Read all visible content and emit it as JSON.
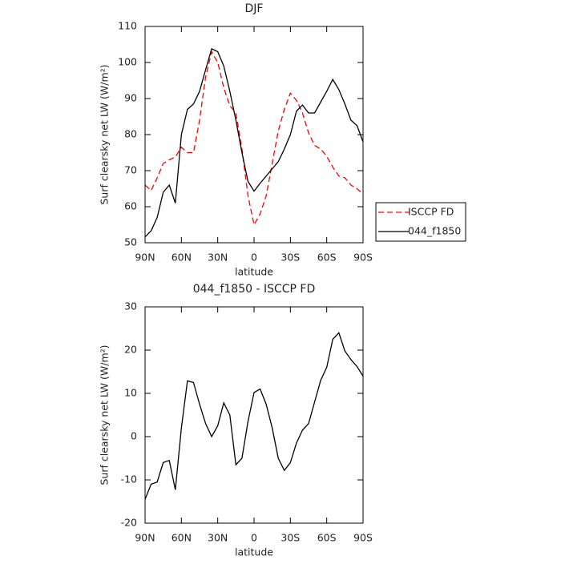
{
  "chart_data": [
    {
      "type": "line",
      "title": "DJF",
      "x_label": "latitude",
      "y_label": "Surf clearsky net LW (W/m²)",
      "x": [
        90,
        85,
        80,
        75,
        70,
        65,
        60,
        55,
        50,
        45,
        40,
        35,
        30,
        25,
        20,
        15,
        10,
        5,
        0,
        -5,
        -10,
        -15,
        -20,
        -25,
        -30,
        -35,
        -40,
        -45,
        -50,
        -55,
        -60,
        -65,
        -70,
        -75,
        -80,
        -85,
        -90
      ],
      "series": [
        {
          "name": "ISCCP FD",
          "color": "#ff0000",
          "line_style": "dashed",
          "values": [
            66,
            64.5,
            68,
            72,
            73,
            73.8,
            76.5,
            75,
            75,
            84,
            96,
            103,
            100,
            93,
            88,
            86,
            76,
            63,
            55,
            58,
            63,
            72,
            81,
            87,
            91.5,
            89.5,
            86,
            80.5,
            77,
            76,
            74,
            71,
            68.5,
            68,
            66,
            65,
            63.5
          ]
        },
        {
          "name": "044_f1850",
          "color": "#000000",
          "line_style": "solid",
          "values": [
            51.6,
            53.3,
            57,
            64,
            66,
            61,
            80,
            87,
            88.5,
            92,
            98,
            103.8,
            103,
            99,
            92,
            84,
            75,
            67,
            64.3,
            66.5,
            68.5,
            70.5,
            72.5,
            76,
            80,
            86.5,
            88.2,
            86,
            86,
            89,
            92,
            95.3,
            92.5,
            88.5,
            84,
            82.5,
            78
          ]
        }
      ],
      "xlim": [
        90,
        -90
      ],
      "xticks": [
        {
          "value": 90,
          "label": "90N"
        },
        {
          "value": 60,
          "label": "60N"
        },
        {
          "value": 30,
          "label": "30N"
        },
        0,
        {
          "value": -30,
          "label": "30S"
        },
        {
          "value": -60,
          "label": "60S"
        },
        {
          "value": -90,
          "label": "90S"
        }
      ],
      "ylim": [
        50,
        110
      ],
      "yticks": [
        50,
        60,
        70,
        80,
        90,
        100,
        110
      ],
      "legend": "right"
    },
    {
      "type": "line",
      "title": "044_f1850 - ISCCP FD",
      "x_label": "latitude",
      "y_label": "Surf clearsky net LW (W/m²)",
      "x": [
        90,
        85,
        80,
        75,
        70,
        65,
        60,
        55,
        50,
        45,
        40,
        35,
        30,
        25,
        20,
        15,
        10,
        5,
        0,
        -5,
        -10,
        -15,
        -20,
        -25,
        -30,
        -35,
        -40,
        -45,
        -50,
        -55,
        -60,
        -65,
        -70,
        -75,
        -80,
        -85,
        -90
      ],
      "series": [
        {
          "color": "#000000",
          "line_style": "solid",
          "values": [
            -14.5,
            -11,
            -10.5,
            -6,
            -5.5,
            -12.3,
            2,
            12.9,
            12.5,
            7.5,
            3,
            0,
            2.5,
            7.8,
            5,
            -6.5,
            -5,
            3.5,
            10.2,
            11,
            7.5,
            2,
            -5,
            -7.8,
            -6,
            -1.5,
            1.5,
            3,
            8,
            13,
            16,
            22.5,
            24,
            19.8,
            17.8,
            16.2,
            14
          ]
        }
      ],
      "xlim": [
        90,
        -90
      ],
      "xticks": [
        {
          "value": 90,
          "label": "90N"
        },
        {
          "value": 60,
          "label": "60N"
        },
        {
          "value": 30,
          "label": "30N"
        },
        0,
        {
          "value": -30,
          "label": "30S"
        },
        {
          "value": -60,
          "label": "60S"
        },
        {
          "value": -90,
          "label": "90S"
        }
      ],
      "ylim": [
        -20,
        30
      ],
      "yticks": [
        -20,
        -10,
        0,
        10,
        20,
        30
      ]
    }
  ]
}
